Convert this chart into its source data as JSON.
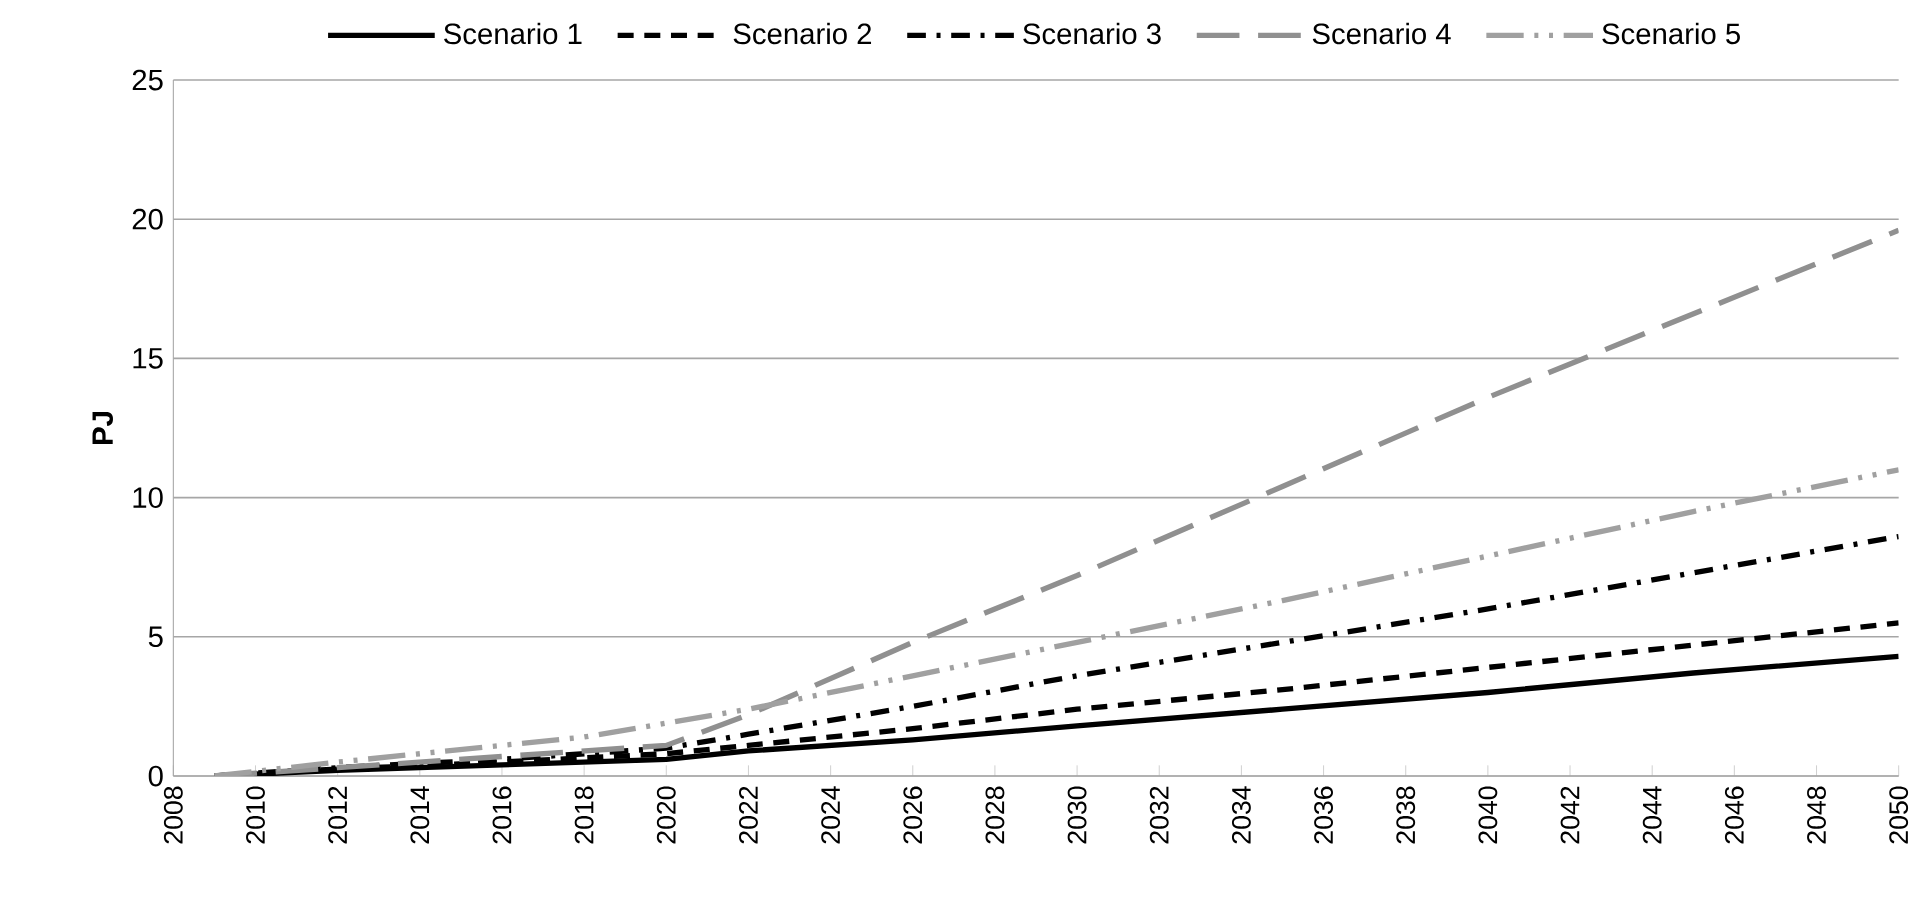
{
  "chart_data": {
    "type": "line",
    "ylabel": "PJ",
    "xlim": [
      2008,
      2050
    ],
    "ylim": [
      0,
      25
    ],
    "xticks": [
      2008,
      2010,
      2012,
      2014,
      2016,
      2018,
      2020,
      2022,
      2024,
      2026,
      2028,
      2030,
      2032,
      2034,
      2036,
      2038,
      2040,
      2042,
      2044,
      2046,
      2048,
      2050
    ],
    "yticks": [
      0,
      5,
      10,
      15,
      20,
      25
    ],
    "grid": "y",
    "legend": "top",
    "marker": "none",
    "series": [
      {
        "name": "Scenario 1",
        "color": "#000000",
        "line_style": "solid",
        "x": [
          2009,
          2012,
          2016,
          2020,
          2022,
          2026,
          2030,
          2035,
          2040,
          2045,
          2050
        ],
        "values": [
          0,
          0.2,
          0.4,
          0.6,
          0.9,
          1.3,
          1.8,
          2.4,
          3.0,
          3.7,
          4.3
        ]
      },
      {
        "name": "Scenario 2",
        "color": "#000000",
        "line_style": "dashed",
        "x": [
          2009,
          2012,
          2016,
          2020,
          2022,
          2026,
          2030,
          2035,
          2040,
          2045,
          2050
        ],
        "values": [
          0,
          0.25,
          0.5,
          0.8,
          1.1,
          1.7,
          2.4,
          3.1,
          3.9,
          4.7,
          5.5
        ]
      },
      {
        "name": "Scenario 3",
        "color": "#000000",
        "line_style": "dashdot",
        "x": [
          2009,
          2012,
          2016,
          2020,
          2022,
          2026,
          2030,
          2035,
          2040,
          2045,
          2050
        ],
        "values": [
          0,
          0.3,
          0.6,
          1.0,
          1.5,
          2.5,
          3.6,
          4.8,
          6.0,
          7.3,
          8.6
        ]
      },
      {
        "name": "Scenario 4",
        "color": "#909090",
        "line_style": "longdash",
        "x": [
          2009,
          2012,
          2016,
          2020,
          2022,
          2026,
          2030,
          2035,
          2040,
          2045,
          2050
        ],
        "values": [
          0,
          0.3,
          0.7,
          1.1,
          2.2,
          4.8,
          7.2,
          10.4,
          13.6,
          16.6,
          19.6
        ]
      },
      {
        "name": "Scenario 5",
        "color": "#a0a0a0",
        "line_style": "dashdotdot",
        "x": [
          2009,
          2012,
          2014,
          2018,
          2020,
          2022,
          2026,
          2030,
          2035,
          2040,
          2045,
          2050
        ],
        "values": [
          0,
          0.5,
          0.8,
          1.4,
          1.9,
          2.4,
          3.6,
          4.8,
          6.3,
          7.9,
          9.5,
          11.0
        ]
      }
    ]
  }
}
